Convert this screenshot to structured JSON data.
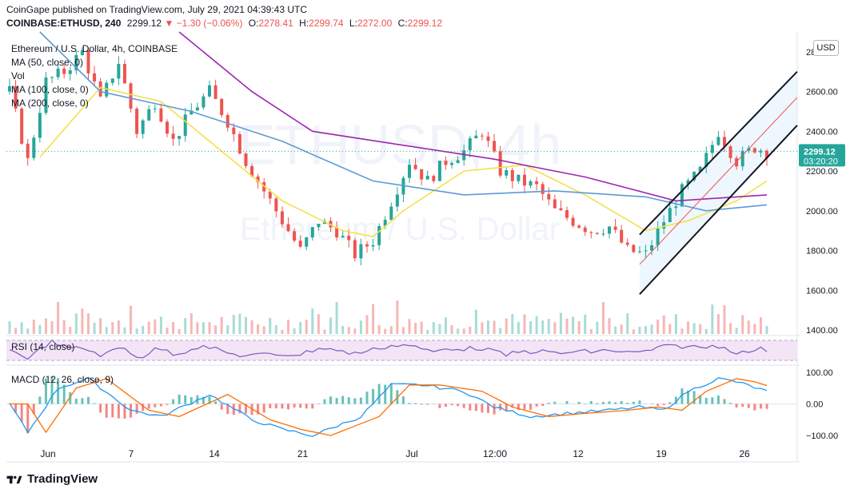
{
  "header": {
    "publisher_line": "CoinGape published on TradingView.com, July 29, 2021 04:39:43 UTC",
    "symbol": "COINBASE:ETHUSD, 240",
    "last": "2299.12",
    "change": "▼ −1.30 (−0.06%)",
    "open_label": "O:",
    "open": "2278.41",
    "high_label": "H:",
    "high": "2299.74",
    "low_label": "L:",
    "low": "2272.00",
    "close_label": "C:",
    "close": "2299.12"
  },
  "legend": {
    "title": "Ethereum / U.S. Dollar, 4h, COINBASE",
    "ma50": "MA (50, close, 0)",
    "vol": "Vol",
    "ma100": "MA (100, close, 0)",
    "ma200": "MA (200, close, 0)",
    "rsi": "RSI (14, close)",
    "macd": "MACD (12, 26, close, 9)"
  },
  "watermark": {
    "big": "ETHUSD, 4h",
    "sub": "Ethereum / U.S. Dollar"
  },
  "currency_button": "USD",
  "last_price_tag": {
    "price": "2299.12",
    "countdown": "03:20:20"
  },
  "footer": {
    "logo_text": "TradingView"
  },
  "colors": {
    "up": "#26a69a",
    "down": "#ef5350",
    "ma50": "#f4e04d",
    "ma100": "#5b9bd5",
    "ma200": "#9c27b0",
    "rsi": "#7e57c2",
    "macd": "#2196f3",
    "signal": "#ff6d00",
    "channel": "#131722",
    "channel_mid": "#ef5350",
    "channel_fill": "#e3f2fd"
  },
  "chart_data": {
    "type": "candlestick",
    "title": "Ethereum / U.S. Dollar, 4h, COINBASE",
    "y_ticks": [
      1400,
      1600,
      1800,
      2000,
      2200,
      2400,
      2600,
      2800
    ],
    "ylim": [
      1380,
      2900
    ],
    "x_tick_labels": [
      "Jun",
      "7",
      "14",
      "21",
      "Jul",
      "12:00",
      "12",
      "19",
      "26"
    ],
    "price_path": [
      [
        0,
        2600
      ],
      [
        3,
        2250
      ],
      [
        6,
        2650
      ],
      [
        9,
        2700
      ],
      [
        12,
        2800
      ],
      [
        15,
        2550
      ],
      [
        18,
        2750
      ],
      [
        21,
        2400
      ],
      [
        24,
        2550
      ],
      [
        27,
        2350
      ],
      [
        30,
        2500
      ],
      [
        33,
        2600
      ],
      [
        36,
        2450
      ],
      [
        39,
        2250
      ],
      [
        42,
        2100
      ],
      [
        45,
        1950
      ],
      [
        48,
        1800
      ],
      [
        51,
        1950
      ],
      [
        54,
        1900
      ],
      [
        57,
        1780
      ],
      [
        60,
        1850
      ],
      [
        63,
        2050
      ],
      [
        66,
        2250
      ],
      [
        69,
        2150
      ],
      [
        72,
        2250
      ],
      [
        75,
        2300
      ],
      [
        78,
        2400
      ],
      [
        81,
        2200
      ],
      [
        84,
        2150
      ],
      [
        87,
        2120
      ],
      [
        90,
        2000
      ],
      [
        93,
        1950
      ],
      [
        96,
        1900
      ],
      [
        99,
        1920
      ],
      [
        102,
        1800
      ],
      [
        105,
        1780
      ],
      [
        108,
        1950
      ],
      [
        111,
        2100
      ],
      [
        114,
        2200
      ],
      [
        117,
        2400
      ],
      [
        120,
        2250
      ],
      [
        123,
        2320
      ],
      [
        125,
        2299
      ]
    ],
    "n_candles": 126,
    "ma_series": [
      {
        "name": "MA (50, close, 0)",
        "color": "#f4e04d",
        "path": [
          [
            5,
            2270
          ],
          [
            15,
            2620
          ],
          [
            25,
            2550
          ],
          [
            35,
            2300
          ],
          [
            45,
            2050
          ],
          [
            55,
            1900
          ],
          [
            60,
            1870
          ],
          [
            65,
            2000
          ],
          [
            75,
            2200
          ],
          [
            85,
            2230
          ],
          [
            95,
            2080
          ],
          [
            105,
            1900
          ],
          [
            112,
            1950
          ],
          [
            120,
            2050
          ],
          [
            125,
            2150
          ]
        ]
      },
      {
        "name": "MA (100, close, 0)",
        "color": "#5b9bd5",
        "path": [
          [
            5,
            2900
          ],
          [
            15,
            2600
          ],
          [
            30,
            2500
          ],
          [
            45,
            2350
          ],
          [
            60,
            2150
          ],
          [
            75,
            2080
          ],
          [
            90,
            2100
          ],
          [
            105,
            2070
          ],
          [
            115,
            2000
          ],
          [
            125,
            2030
          ]
        ]
      },
      {
        "name": "MA (200, close, 0)",
        "color": "#9c27b0",
        "path": [
          [
            28,
            2900
          ],
          [
            40,
            2600
          ],
          [
            50,
            2400
          ],
          [
            65,
            2330
          ],
          [
            80,
            2260
          ],
          [
            95,
            2170
          ],
          [
            110,
            2050
          ],
          [
            125,
            2080
          ]
        ]
      }
    ],
    "channel": {
      "upper": [
        [
          104,
          1880
        ],
        [
          130,
          2700
        ]
      ],
      "middle": [
        [
          104,
          1730
        ],
        [
          130,
          2570
        ]
      ],
      "lower": [
        [
          104,
          1580
        ],
        [
          130,
          2430
        ]
      ]
    },
    "rsi": {
      "name": "RSI (14, close)",
      "upper_band": 70,
      "lower_band": 30
    },
    "macd": {
      "name": "MACD (12, 26, close, 9)",
      "y_ticks": [
        -100,
        0,
        100
      ],
      "ylim": [
        -120,
        120
      ],
      "macd_path": [
        [
          0,
          0
        ],
        [
          3,
          -90
        ],
        [
          8,
          50
        ],
        [
          13,
          80
        ],
        [
          20,
          -20
        ],
        [
          25,
          -40
        ],
        [
          33,
          30
        ],
        [
          40,
          -50
        ],
        [
          45,
          -80
        ],
        [
          50,
          -100
        ],
        [
          58,
          -40
        ],
        [
          63,
          60
        ],
        [
          68,
          60
        ],
        [
          75,
          40
        ],
        [
          80,
          -10
        ],
        [
          86,
          -40
        ],
        [
          92,
          -30
        ],
        [
          99,
          -20
        ],
        [
          104,
          -10
        ],
        [
          108,
          -20
        ],
        [
          112,
          40
        ],
        [
          117,
          80
        ],
        [
          120,
          70
        ],
        [
          125,
          40
        ]
      ]
    },
    "volume_spikes": [
      8,
      12,
      20,
      50,
      54,
      60,
      64,
      77,
      98,
      116,
      118
    ]
  }
}
